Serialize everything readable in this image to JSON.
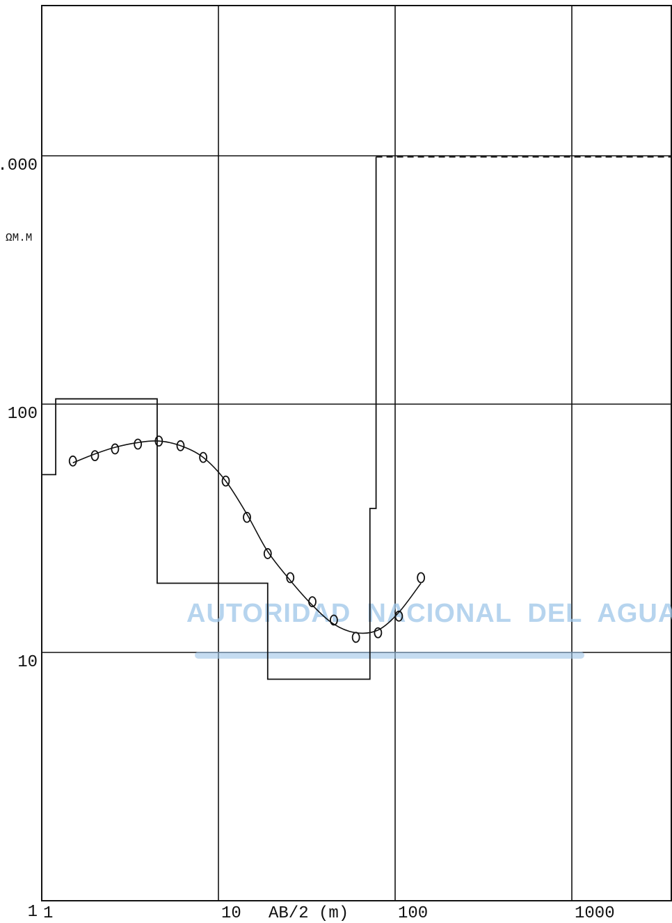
{
  "chart_data": {
    "type": "line",
    "xscale": "log",
    "yscale": "log",
    "xlim": [
      1,
      3000
    ],
    "ylim": [
      1,
      3000
    ],
    "grid": true,
    "xlabel": "AB/2 (m)",
    "ylabel": "ΩM.M",
    "x_ticks": [
      "1",
      "10",
      "100",
      "1000"
    ],
    "y_ticks": [
      "1",
      "10",
      "100",
      ".000"
    ],
    "series": [
      {
        "kind": "field_points",
        "marker": "circle",
        "x": [
          1.5,
          2.0,
          2.6,
          3.5,
          4.6,
          6.1,
          8.2,
          11,
          14.5,
          19,
          25.5,
          34,
          45,
          60,
          80,
          105,
          140
        ],
        "y": [
          59,
          62,
          66,
          69,
          71,
          68,
          61,
          49,
          35,
          25,
          20,
          16,
          13.5,
          11.5,
          12,
          14,
          20
        ]
      },
      {
        "kind": "calculated_curve",
        "x": [
          1.5,
          2.0,
          2.6,
          3.5,
          4.6,
          6.1,
          8.2,
          11,
          14.5,
          19,
          25.5,
          34,
          45,
          60,
          80,
          105,
          140
        ],
        "y": [
          58,
          63,
          67,
          70,
          71,
          68,
          61,
          49,
          36,
          25.5,
          19.5,
          15.5,
          13,
          12,
          12.3,
          14.5,
          19
        ]
      },
      {
        "kind": "layer_model",
        "step_x": [
          1,
          1.2,
          4.5,
          19,
          72,
          78,
          3000
        ],
        "step_y": [
          52,
          105,
          19,
          7.8,
          38,
          990
        ],
        "last_segment_dashed": true
      }
    ]
  },
  "watermark": "AUTORIDAD  NACIONAL  DEL  AGUA",
  "watermark_bar_color": "#9ec5e8",
  "line_color": "#111111",
  "grid_color": "#111111"
}
